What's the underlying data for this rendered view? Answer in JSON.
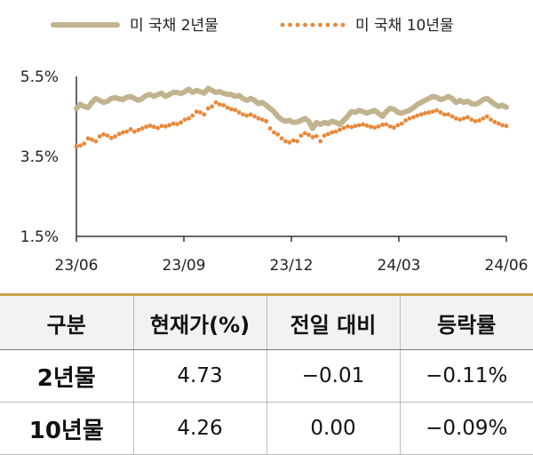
{
  "chart_data": {
    "type": "line",
    "legend": [
      "미 국채 2년물",
      "미 국채 10년물"
    ],
    "legend_position": "top",
    "series": [
      {
        "name": "미 국채 2년물",
        "style": "solid",
        "color": "#c2b38f",
        "values": [
          4.7,
          4.8,
          4.75,
          4.72,
          4.85,
          4.95,
          4.9,
          4.85,
          4.88,
          4.95,
          4.97,
          4.94,
          4.92,
          4.98,
          5.0,
          4.95,
          4.9,
          4.95,
          5.02,
          5.05,
          5.0,
          5.05,
          5.08,
          5.0,
          5.05,
          5.1,
          5.1,
          5.07,
          5.12,
          5.18,
          5.1,
          5.15,
          5.12,
          5.08,
          5.2,
          5.15,
          5.1,
          5.12,
          5.08,
          5.05,
          5.05,
          5.0,
          5.02,
          4.95,
          4.9,
          4.95,
          4.9,
          4.82,
          4.85,
          4.78,
          4.7,
          4.62,
          4.5,
          4.42,
          4.38,
          4.4,
          4.35,
          4.36,
          4.4,
          4.45,
          4.38,
          4.2,
          4.35,
          4.3,
          4.35,
          4.32,
          4.38,
          4.35,
          4.3,
          4.4,
          4.5,
          4.62,
          4.6,
          4.65,
          4.62,
          4.58,
          4.62,
          4.65,
          4.58,
          4.5,
          4.62,
          4.7,
          4.68,
          4.6,
          4.58,
          4.62,
          4.65,
          4.72,
          4.8,
          4.85,
          4.9,
          4.95,
          5.0,
          4.98,
          4.92,
          4.95,
          5.0,
          4.95,
          4.85,
          4.9,
          4.85,
          4.88,
          4.82,
          4.8,
          4.85,
          4.92,
          4.95,
          4.88,
          4.8,
          4.75,
          4.78,
          4.73
        ]
      },
      {
        "name": "미 국채 10년물",
        "style": "dotted",
        "color": "#e8893a",
        "values": [
          3.75,
          3.77,
          3.82,
          3.95,
          3.92,
          3.88,
          4.0,
          4.05,
          4.02,
          3.96,
          4.0,
          4.06,
          4.1,
          4.12,
          4.18,
          4.12,
          4.16,
          4.2,
          4.24,
          4.27,
          4.24,
          4.21,
          4.26,
          4.25,
          4.28,
          4.32,
          4.31,
          4.35,
          4.42,
          4.45,
          4.52,
          4.62,
          4.6,
          4.55,
          4.7,
          4.75,
          4.85,
          4.8,
          4.78,
          4.72,
          4.68,
          4.66,
          4.6,
          4.55,
          4.52,
          4.55,
          4.5,
          4.45,
          4.42,
          4.38,
          4.2,
          4.1,
          4.05,
          3.95,
          3.88,
          3.85,
          3.9,
          3.88,
          4.02,
          4.08,
          4.04,
          3.98,
          4.01,
          3.88,
          4.02,
          4.06,
          4.1,
          4.12,
          4.17,
          4.21,
          4.25,
          4.23,
          4.26,
          4.28,
          4.3,
          4.27,
          4.24,
          4.22,
          4.25,
          4.29,
          4.3,
          4.25,
          4.22,
          4.28,
          4.32,
          4.4,
          4.45,
          4.48,
          4.52,
          4.55,
          4.58,
          4.6,
          4.62,
          4.65,
          4.6,
          4.55,
          4.55,
          4.5,
          4.45,
          4.42,
          4.45,
          4.48,
          4.42,
          4.38,
          4.4,
          4.45,
          4.5,
          4.42,
          4.36,
          4.32,
          4.28,
          4.26
        ]
      }
    ],
    "x_ticks": [
      "23/06",
      "23/09",
      "23/12",
      "24/03",
      "24/06"
    ],
    "y_ticks": [
      "5.5%",
      "3.5%",
      "1.5%"
    ],
    "y_tick_values": [
      5.5,
      3.5,
      1.5
    ],
    "ylim": [
      1.5,
      5.5
    ],
    "grid": false
  },
  "table": {
    "headers": [
      "구분",
      "현재가(%)",
      "전일 대비",
      "등락률"
    ],
    "rows": [
      [
        "2년물",
        "4.73",
        "−0.01",
        "−0.11%"
      ],
      [
        "10년물",
        "4.26",
        "0.00",
        "−0.09%"
      ]
    ]
  }
}
